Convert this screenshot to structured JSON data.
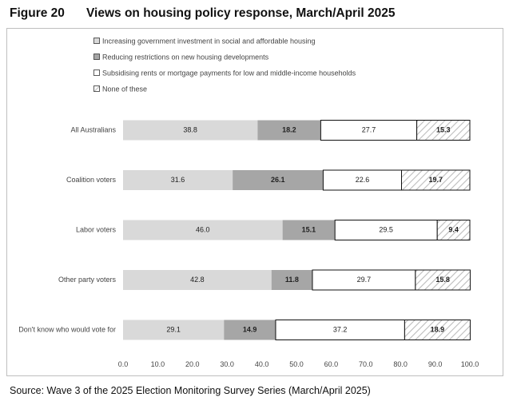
{
  "figure": {
    "number": "Figure 20",
    "title": "Views on housing policy response, March/April 2025",
    "source": "Source: Wave 3 of the 2025 Election Monitoring Survey Series (March/April 2025)"
  },
  "chart_data": {
    "type": "bar",
    "orientation": "horizontal",
    "stacked": true,
    "title": "Views on housing policy response, March/April 2025",
    "xlim": [
      0,
      100
    ],
    "x_ticks": [
      "0.0",
      "10.0",
      "20.0",
      "30.0",
      "40.0",
      "50.0",
      "60.0",
      "70.0",
      "80.0",
      "90.0",
      "100.0"
    ],
    "legend_position": "top-left",
    "grid": false,
    "categories": [
      "All Australians",
      "Coalition voters",
      "Labor voters",
      "Other party voters",
      "Don't know who would vote for"
    ],
    "series": [
      {
        "name": "Increasing government investment in social and affordable housing",
        "color": "#d9d9d9",
        "label_bold": false,
        "values": [
          38.8,
          31.6,
          46.0,
          42.8,
          29.1
        ]
      },
      {
        "name": "Reducing restrictions on new housing developments",
        "color": "#a6a6a6",
        "label_bold": true,
        "values": [
          18.2,
          26.1,
          15.1,
          11.8,
          14.9
        ]
      },
      {
        "name": "Subsidising rents or mortgage payments for low and middle-income households",
        "color": "#ffffff",
        "label_bold": false,
        "values": [
          27.7,
          22.6,
          29.5,
          29.7,
          37.2
        ]
      },
      {
        "name": "None of these",
        "color": "hatch",
        "label_bold": true,
        "values": [
          15.3,
          19.7,
          9.4,
          15.8,
          18.9
        ]
      }
    ],
    "value_labels": [
      [
        "38.8",
        "18.2",
        "27.7",
        "15.3"
      ],
      [
        "31.6",
        "26.1",
        "22.6",
        "19.7"
      ],
      [
        "46.0",
        "15.1",
        "29.5",
        "9.4"
      ],
      [
        "42.8",
        "11.8",
        "29.7",
        "15.8"
      ],
      [
        "29.1",
        "14.9",
        "37.2",
        "18.9"
      ]
    ]
  }
}
